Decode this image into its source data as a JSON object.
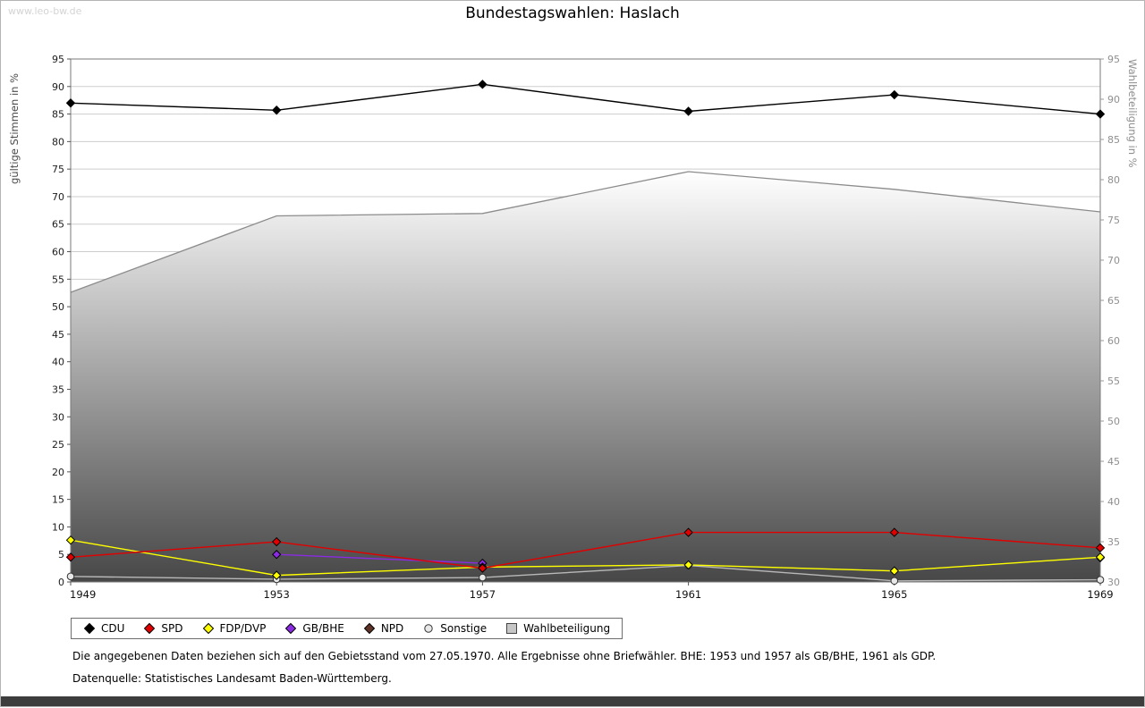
{
  "page": {
    "watermark": "www.leo-bw.de",
    "title": "Bundestagswahlen: Haslach",
    "footnote1": "Die angegebenen Daten beziehen sich auf den Gebietsstand vom 27.05.1970. Alle Ergebnisse ohne Briefwähler. BHE: 1953 und 1957 als GB/BHE, 1961 als GDP.",
    "footnote2": "Datenquelle: Statistisches Landesamt Baden-Württemberg."
  },
  "chart_data": {
    "type": "line",
    "title": "Bundestagswahlen: Haslach",
    "x": [
      1949,
      1953,
      1957,
      1961,
      1965,
      1969
    ],
    "left_axis": {
      "label": "gültige Stimmen in %",
      "min": 0,
      "max": 95,
      "tick_step": 5
    },
    "right_axis": {
      "label": "Wahlbeteiligung in %",
      "min": 30,
      "max": 95,
      "tick_step": 5
    },
    "grid": true,
    "legend_position": "bottom",
    "series": [
      {
        "name": "CDU",
        "axis": "left",
        "marker": "diamond",
        "color": "#000000",
        "values": [
          87,
          85.7,
          90.4,
          85.5,
          88.5,
          85
        ]
      },
      {
        "name": "SPD",
        "axis": "left",
        "marker": "diamond",
        "color": "#e10000",
        "values": [
          4.5,
          7.3,
          2.5,
          9,
          9,
          6.2
        ]
      },
      {
        "name": "FDP/DVP",
        "axis": "left",
        "marker": "diamond",
        "color": "#ffff00",
        "values": [
          7.6,
          1.2,
          2.7,
          3.1,
          2,
          4.5
        ]
      },
      {
        "name": "GB/BHE",
        "axis": "left",
        "marker": "diamond",
        "color": "#8a2be2",
        "values": [
          null,
          5,
          3.4,
          null,
          null,
          null
        ]
      },
      {
        "name": "NPD",
        "axis": "left",
        "marker": "diamond",
        "color": "#5e3328",
        "values": [
          null,
          null,
          null,
          null,
          null,
          4.4
        ]
      },
      {
        "name": "Sonstige",
        "axis": "left",
        "marker": "circle",
        "color": "#b8b8b8",
        "fill": "#e8e8e8",
        "values": [
          1,
          0.5,
          0.8,
          3,
          0.2,
          0.4
        ]
      },
      {
        "name": "Wahlbeteiligung",
        "axis": "right",
        "type": "area",
        "marker": "square",
        "color": "#8c8c8c",
        "fill_top": "#ffffff",
        "fill_bottom": "#474747",
        "values": [
          66,
          75.5,
          75.8,
          81,
          78.8,
          76
        ]
      }
    ]
  }
}
